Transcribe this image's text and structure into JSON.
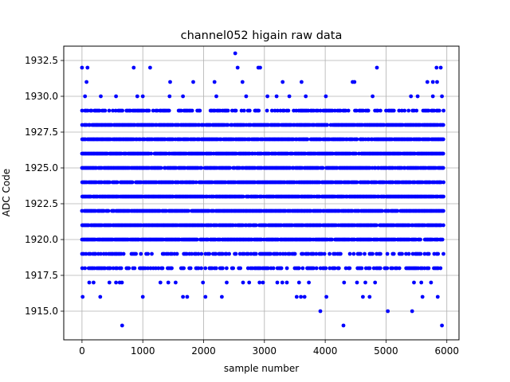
{
  "chart_data": {
    "type": "scatter",
    "title": "channel052 higain raw data",
    "xlabel": "sample number",
    "ylabel": "ADC Code",
    "xlim": [
      -300,
      6200
    ],
    "ylim": [
      1913.0,
      1933.5
    ],
    "xticks": [
      0,
      1000,
      2000,
      3000,
      4000,
      5000,
      6000
    ],
    "xtick_labels": [
      "0",
      "1000",
      "2000",
      "3000",
      "4000",
      "5000",
      "6000"
    ],
    "yticks": [
      1915.0,
      1917.5,
      1920.0,
      1922.5,
      1925.0,
      1927.5,
      1930.0,
      1932.5
    ],
    "ytick_labels": [
      "1915.0",
      "1917.5",
      "1920.0",
      "1922.5",
      "1925.0",
      "1927.5",
      "1930.0",
      "1932.5"
    ],
    "grid": true,
    "marker_color": "#0000ff",
    "x_range": [
      0,
      5940
    ],
    "dense_levels": [
      1920,
      1921,
      1922,
      1923,
      1924,
      1925,
      1926,
      1927,
      1928
    ],
    "medium_levels": [
      1918,
      1919,
      1929
    ],
    "sparse_points": [
      [
        0,
        1932
      ],
      [
        90,
        1932
      ],
      [
        75,
        1931
      ],
      [
        1120,
        1932
      ],
      [
        850,
        1932
      ],
      [
        2520,
        1933
      ],
      [
        2560,
        1932
      ],
      [
        2900,
        1932
      ],
      [
        2930,
        1932
      ],
      [
        4850,
        1932
      ],
      [
        5830,
        1932
      ],
      [
        5900,
        1932
      ],
      [
        2180,
        1931
      ],
      [
        2640,
        1931
      ],
      [
        3300,
        1931
      ],
      [
        3610,
        1931
      ],
      [
        4450,
        1931
      ],
      [
        4480,
        1931
      ],
      [
        5680,
        1931
      ],
      [
        5770,
        1931
      ],
      [
        5840,
        1931
      ],
      [
        1450,
        1931
      ],
      [
        1830,
        1931
      ],
      [
        50,
        1930
      ],
      [
        310,
        1930
      ],
      [
        560,
        1930
      ],
      [
        910,
        1930
      ],
      [
        1000,
        1930
      ],
      [
        1440,
        1930
      ],
      [
        1660,
        1930
      ],
      [
        2210,
        1930
      ],
      [
        2700,
        1930
      ],
      [
        3050,
        1930
      ],
      [
        3200,
        1930
      ],
      [
        3410,
        1930
      ],
      [
        3680,
        1930
      ],
      [
        4010,
        1930
      ],
      [
        4780,
        1930
      ],
      [
        5410,
        1930
      ],
      [
        5520,
        1930
      ],
      [
        5770,
        1930
      ],
      [
        5920,
        1930
      ],
      [
        10,
        1916
      ],
      [
        120,
        1917
      ],
      [
        190,
        1917
      ],
      [
        300,
        1916
      ],
      [
        560,
        1917
      ],
      [
        620,
        1917
      ],
      [
        1000,
        1916
      ],
      [
        1290,
        1917
      ],
      [
        1540,
        1917
      ],
      [
        1660,
        1916
      ],
      [
        1730,
        1916
      ],
      [
        1990,
        1917
      ],
      [
        2030,
        1916
      ],
      [
        2300,
        1916
      ],
      [
        2380,
        1917
      ],
      [
        2750,
        1917
      ],
      [
        2920,
        1917
      ],
      [
        3530,
        1916
      ],
      [
        3600,
        1916
      ],
      [
        3660,
        1916
      ],
      [
        4020,
        1916
      ],
      [
        4310,
        1917
      ],
      [
        4620,
        1916
      ],
      [
        4730,
        1916
      ],
      [
        4660,
        1917
      ],
      [
        5460,
        1917
      ],
      [
        5600,
        1916
      ],
      [
        5740,
        1917
      ],
      [
        5850,
        1916
      ],
      [
        660,
        1914
      ],
      [
        4300,
        1914
      ],
      [
        5920,
        1914
      ],
      [
        3920,
        1915
      ],
      [
        5030,
        1915
      ],
      [
        5430,
        1915
      ]
    ]
  }
}
